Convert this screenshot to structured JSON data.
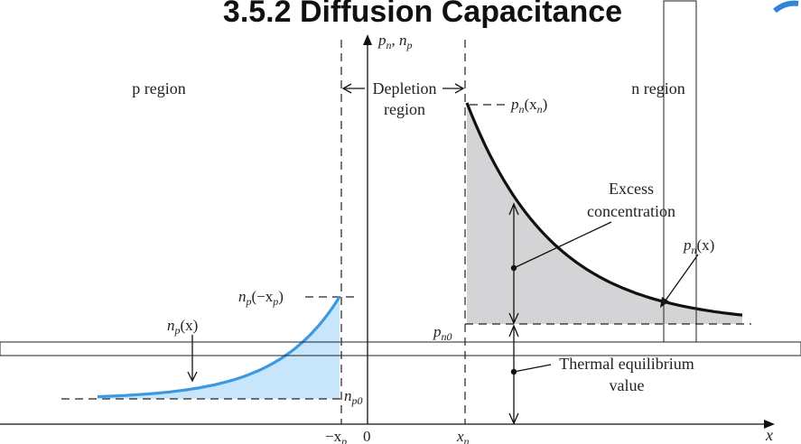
{
  "slide_title": "3.5.2 Diffusion Capacitance",
  "diagram": {
    "y_axis_label": "p",
    "y_axis_label_sub": "n",
    "y_axis_label_sep": ", ",
    "y_axis_label_2": "n",
    "y_axis_label_2_sub": "p",
    "x_axis_label": "x",
    "p_region": "p region",
    "n_region": "n region",
    "depletion_line1": "Depletion",
    "depletion_line2": "region",
    "pn_xn": "p",
    "pn_xn_sub": "n",
    "pn_xn_arg": "(x",
    "pn_xn_arg_sub": "n",
    "pn_xn_close": ")",
    "excess_line1": "Excess",
    "excess_line2": "concentration",
    "pn_x": "p",
    "pn_x_sub": "n",
    "pn_x_arg": "(x)",
    "np_neg_xp": "n",
    "np_neg_xp_sub": "p",
    "np_neg_xp_arg": "(−x",
    "np_neg_xp_arg_sub": "p",
    "np_neg_xp_close": ")",
    "np_x": "n",
    "np_x_sub": "p",
    "np_x_arg": "(x)",
    "pn0": "p",
    "pn0_sub": "n0",
    "np0": "n",
    "np0_sub": "p0",
    "thermal_line1": "Thermal equilibrium",
    "thermal_line2": "value",
    "tick_neg_xp": "−x",
    "tick_neg_xp_sub": "p",
    "tick_zero": "0",
    "tick_xn": "x",
    "tick_xn_sub": "n"
  },
  "colors": {
    "n_side_fill": "#d4d4d6",
    "p_side_fill": "#c7e6fb",
    "p_side_curve": "#3d98e0",
    "n_side_curve": "#111111",
    "logo_accent": "#2f86d6"
  }
}
